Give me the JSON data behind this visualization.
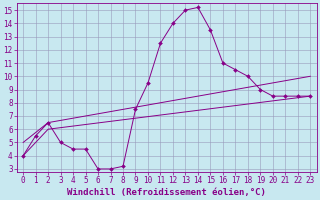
{
  "xlabel": "Windchill (Refroidissement éolien,°C)",
  "bg_color": "#c8e8f0",
  "line_color": "#880088",
  "xlim": [
    -0.5,
    23.5
  ],
  "ylim": [
    2.8,
    15.5
  ],
  "yticks": [
    3,
    4,
    5,
    6,
    7,
    8,
    9,
    10,
    11,
    12,
    13,
    14,
    15
  ],
  "xticks": [
    0,
    1,
    2,
    3,
    4,
    5,
    6,
    7,
    8,
    9,
    10,
    11,
    12,
    13,
    14,
    15,
    16,
    17,
    18,
    19,
    20,
    21,
    22,
    23
  ],
  "line1_x": [
    0,
    1,
    2,
    3,
    4,
    5,
    6,
    7,
    8,
    9,
    10,
    11,
    12,
    13,
    14,
    15,
    16,
    17,
    18,
    19,
    20,
    21,
    22,
    23
  ],
  "line1_y": [
    4.0,
    5.5,
    6.5,
    5.0,
    4.5,
    4.5,
    3.0,
    3.0,
    3.2,
    7.5,
    9.5,
    12.5,
    14.0,
    15.0,
    15.2,
    13.5,
    11.0,
    10.5,
    10.0,
    9.0,
    8.5,
    8.5,
    8.5,
    8.5
  ],
  "line2_x": [
    0,
    2,
    23
  ],
  "line2_y": [
    5.0,
    6.5,
    10.0
  ],
  "line3_x": [
    0,
    2,
    23
  ],
  "line3_y": [
    4.0,
    6.0,
    8.5
  ],
  "grid_color": "#9999bb",
  "tick_fontsize": 5.5,
  "label_fontsize": 6.5,
  "marker": "D",
  "marker_size": 2.0,
  "linewidth": 0.7
}
